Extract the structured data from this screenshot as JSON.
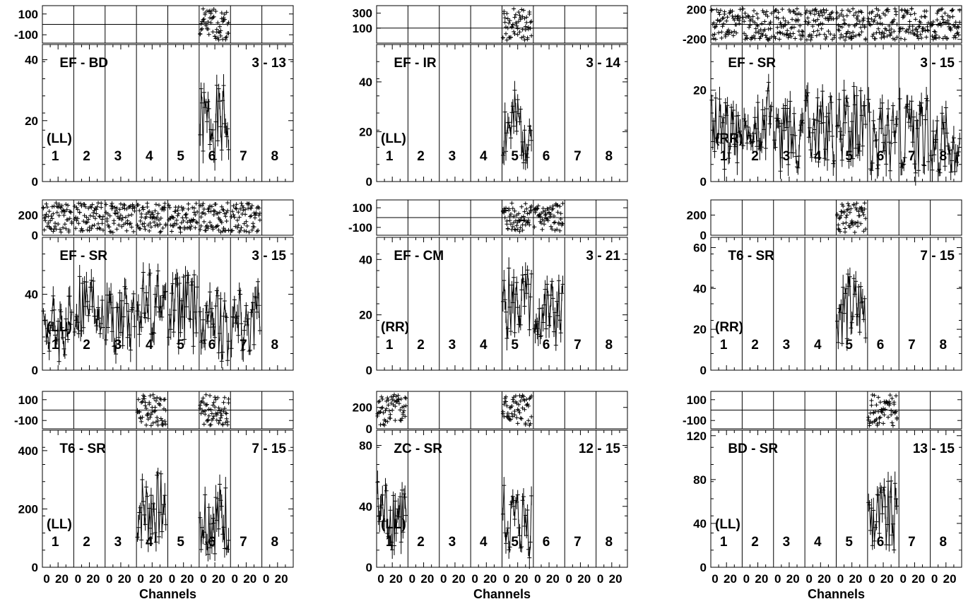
{
  "header_fragment": "",
  "chart_data": [
    {
      "type": "line",
      "baseline": "EF - BD",
      "range": "3 - 13",
      "pol": "(LL)",
      "ylim": [
        0,
        45
      ],
      "ticks": [
        0,
        20,
        40
      ],
      "phase_ylim": [
        -180,
        180
      ],
      "phase_ticks": [
        -100,
        100
      ],
      "phase_ref": 0,
      "active": [
        6
      ],
      "seed": 1
    },
    {
      "type": "line",
      "baseline": "EF - IR",
      "range": "3 - 14",
      "pol": "(LL)",
      "ylim": [
        0,
        55
      ],
      "ticks": [
        0,
        20,
        40
      ],
      "phase_ylim": [
        -100,
        400
      ],
      "phase_ticks": [
        100,
        300
      ],
      "phase_ref": 100,
      "active": [
        5
      ],
      "seed": 2
    },
    {
      "type": "line",
      "baseline": "EF - SR",
      "range": "3 - 15",
      "pol": "(RR)",
      "ylim": [
        0,
        30
      ],
      "ticks": [
        0,
        20
      ],
      "phase_ylim": [
        -250,
        250
      ],
      "phase_ticks": [
        -200,
        200
      ],
      "phase_ref": 0,
      "active": [
        1,
        2,
        3,
        4,
        5,
        6,
        7,
        8
      ],
      "seed": 3
    },
    {
      "type": "line",
      "baseline": "EF - SR",
      "range": "3 - 15",
      "pol": "(LL)",
      "ylim": [
        0,
        70
      ],
      "ticks": [
        0,
        40
      ],
      "phase_ylim": [
        0,
        350
      ],
      "phase_ticks": [
        0,
        200
      ],
      "phase_ref": 0,
      "active": [
        1,
        2,
        3,
        4,
        5,
        6,
        7
      ],
      "seed": 4
    },
    {
      "type": "line",
      "baseline": "EF - CM",
      "range": "3 - 21",
      "pol": "(RR)",
      "ylim": [
        0,
        48
      ],
      "ticks": [
        0,
        20,
        40
      ],
      "phase_ylim": [
        -180,
        180
      ],
      "phase_ticks": [
        -100,
        100
      ],
      "phase_ref": 0,
      "active": [
        5,
        6
      ],
      "seed": 5
    },
    {
      "type": "line",
      "baseline": "T6 - SR",
      "range": "7 - 15",
      "pol": "(RR)",
      "ylim": [
        0,
        65
      ],
      "ticks": [
        0,
        20,
        40,
        60
      ],
      "phase_ylim": [
        0,
        350
      ],
      "phase_ticks": [
        0,
        200
      ],
      "phase_ref": 0,
      "active": [
        5
      ],
      "seed": 6
    },
    {
      "type": "line",
      "baseline": "T6 - SR",
      "range": "7 - 15",
      "pol": "(LL)",
      "ylim": [
        0,
        470
      ],
      "ticks": [
        0,
        200,
        400
      ],
      "phase_ylim": [
        -180,
        180
      ],
      "phase_ticks": [
        -100,
        100
      ],
      "phase_ref": 0,
      "active": [
        4,
        6
      ],
      "seed": 7
    },
    {
      "type": "line",
      "baseline": "ZC - SR",
      "range": "12 - 15",
      "pol": "(LL)",
      "ylim": [
        0,
        90
      ],
      "ticks": [
        0,
        40,
        80
      ],
      "phase_ylim": [
        0,
        350
      ],
      "phase_ticks": [
        0,
        200
      ],
      "phase_ref": 0,
      "active": [
        1,
        5
      ],
      "seed": 8
    },
    {
      "type": "line",
      "baseline": "BD - SR",
      "range": "13 - 15",
      "pol": "(LL)",
      "ylim": [
        0,
        125
      ],
      "ticks": [
        0,
        40,
        80,
        120
      ],
      "phase_ylim": [
        -180,
        180
      ],
      "phase_ticks": [
        -100,
        100
      ],
      "phase_ref": 0,
      "active": [
        6
      ],
      "seed": 9
    }
  ],
  "subbands": [
    "1",
    "2",
    "3",
    "4",
    "5",
    "6",
    "7",
    "8"
  ],
  "channel_tick_labels": [
    "0",
    "20"
  ],
  "xlabel": "Channels"
}
